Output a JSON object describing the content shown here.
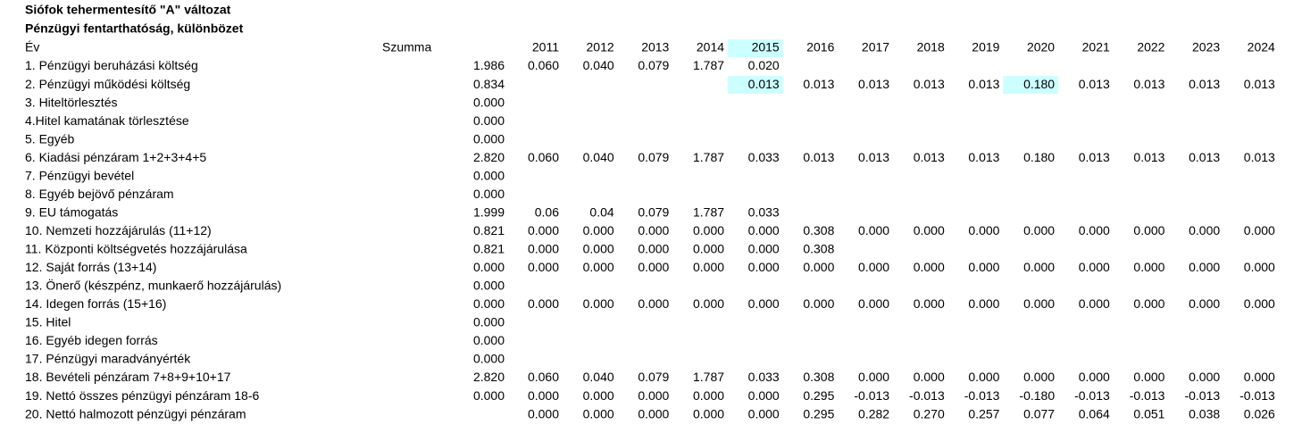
{
  "header": {
    "title": "Siófok tehermentesítő \"A\" változat",
    "subtitle": "Pénzügyi fentarthatóság, különbözet"
  },
  "table": {
    "columns": {
      "label": "Év",
      "summa": "Szumma",
      "years": [
        "2011",
        "2012",
        "2013",
        "2014",
        "2015",
        "2016",
        "2017",
        "2018",
        "2019",
        "2020",
        "2021",
        "2022",
        "2023",
        "2024"
      ]
    },
    "rows": [
      {
        "label": "1. Pénzügyi beruházási költség",
        "summa": "1.986",
        "cells": [
          "0.060",
          "0.040",
          "0.079",
          "1.787",
          "0.020",
          null,
          null,
          null,
          null,
          null,
          null,
          null,
          null,
          null
        ]
      },
      {
        "label": "2. Pénzügyi működési költség",
        "summa": "0.834",
        "cells": [
          null,
          null,
          null,
          null,
          "0.013",
          "0.013",
          "0.013",
          "0.013",
          "0.013",
          "0.180",
          "0.013",
          "0.013",
          "0.013",
          "0.013"
        ]
      },
      {
        "label": "3. Hiteltörlesztés",
        "summa": "0.000",
        "cells": [
          null,
          null,
          null,
          null,
          null,
          null,
          null,
          null,
          null,
          null,
          null,
          null,
          null,
          null
        ]
      },
      {
        "label": "4.Hitel kamatának törlesztése",
        "summa": "0.000",
        "cells": [
          null,
          null,
          null,
          null,
          null,
          null,
          null,
          null,
          null,
          null,
          null,
          null,
          null,
          null
        ]
      },
      {
        "label": "5. Egyéb",
        "summa": "0.000",
        "cells": [
          null,
          null,
          null,
          null,
          null,
          null,
          null,
          null,
          null,
          null,
          null,
          null,
          null,
          null
        ]
      },
      {
        "label": "6. Kiadási pénzáram 1+2+3+4+5",
        "summa": "2.820",
        "cells": [
          "0.060",
          "0.040",
          "0.079",
          "1.787",
          "0.033",
          "0.013",
          "0.013",
          "0.013",
          "0.013",
          "0.180",
          "0.013",
          "0.013",
          "0.013",
          "0.013"
        ]
      },
      {
        "label": "7. Pénzügyi bevétel",
        "summa": "0.000",
        "cells": [
          null,
          null,
          null,
          null,
          null,
          null,
          null,
          null,
          null,
          null,
          null,
          null,
          null,
          null
        ]
      },
      {
        "label": "8. Egyéb bejövő pénzáram",
        "summa": "0.000",
        "cells": [
          null,
          null,
          null,
          null,
          null,
          null,
          null,
          null,
          null,
          null,
          null,
          null,
          null,
          null
        ]
      },
      {
        "label": "9. EU támogatás",
        "summa": "1.999",
        "cells": [
          "0.06",
          "0.04",
          "0.079",
          "1.787",
          "0.033",
          null,
          null,
          null,
          null,
          null,
          null,
          null,
          null,
          null
        ]
      },
      {
        "label": "10. Nemzeti hozzájárulás (11+12)",
        "summa": "0.821",
        "cells": [
          "0.000",
          "0.000",
          "0.000",
          "0.000",
          "0.000",
          "0.308",
          "0.000",
          "0.000",
          "0.000",
          "0.000",
          "0.000",
          "0.000",
          "0.000",
          "0.000"
        ]
      },
      {
        "label": "11. Központi költségvetés hozzájárulása",
        "summa": "0.821",
        "cells": [
          "0.000",
          "0.000",
          "0.000",
          "0.000",
          "0.000",
          "0.308",
          null,
          null,
          null,
          null,
          null,
          null,
          null,
          null
        ]
      },
      {
        "label": "12. Saját forrás (13+14)",
        "summa": "0.000",
        "cells": [
          "0.000",
          "0.000",
          "0.000",
          "0.000",
          "0.000",
          "0.000",
          "0.000",
          "0.000",
          "0.000",
          "0.000",
          "0.000",
          "0.000",
          "0.000",
          "0.000"
        ]
      },
      {
        "label": "13. Önerő (készpénz, munkaerő hozzájárulás)",
        "summa": "0.000",
        "cells": [
          null,
          null,
          null,
          null,
          null,
          null,
          null,
          null,
          null,
          null,
          null,
          null,
          null,
          null
        ]
      },
      {
        "label": "14. Idegen forrás (15+16)",
        "summa": "0.000",
        "cells": [
          "0.000",
          "0.000",
          "0.000",
          "0.000",
          "0.000",
          "0.000",
          "0.000",
          "0.000",
          "0.000",
          "0.000",
          "0.000",
          "0.000",
          "0.000",
          "0.000"
        ]
      },
      {
        "label": "15. Hitel",
        "summa": "0.000",
        "cells": [
          null,
          null,
          null,
          null,
          null,
          null,
          null,
          null,
          null,
          null,
          null,
          null,
          null,
          null
        ]
      },
      {
        "label": "16. Egyéb idegen forrás",
        "summa": "0.000",
        "cells": [
          null,
          null,
          null,
          null,
          null,
          null,
          null,
          null,
          null,
          null,
          null,
          null,
          null,
          null
        ]
      },
      {
        "label": "17. Pénzügyi maradványérték",
        "summa": "0.000",
        "cells": [
          null,
          null,
          null,
          null,
          null,
          null,
          null,
          null,
          null,
          null,
          null,
          null,
          null,
          null
        ]
      },
      {
        "label": "18. Bevételi pénzáram 7+8+9+10+17",
        "summa": "2.820",
        "cells": [
          "0.060",
          "0.040",
          "0.079",
          "1.787",
          "0.033",
          "0.308",
          "0.000",
          "0.000",
          "0.000",
          "0.000",
          "0.000",
          "0.000",
          "0.000",
          "0.000"
        ]
      },
      {
        "label": "19. Nettó összes pénzügyi pénzáram 18-6",
        "summa": "0.000",
        "cells": [
          "0.000",
          "0.000",
          "0.000",
          "0.000",
          "0.000",
          "0.295",
          "-0.013",
          "-0.013",
          "-0.013",
          "-0.180",
          "-0.013",
          "-0.013",
          "-0.013",
          "-0.013"
        ]
      },
      {
        "label": "20. Nettó halmozott pénzügyi pénzáram",
        "summa": null,
        "cells": [
          "0.000",
          "0.000",
          "0.000",
          "0.000",
          "0.000",
          "0.295",
          "0.282",
          "0.270",
          "0.257",
          "0.077",
          "0.064",
          "0.051",
          "0.038",
          "0.026"
        ]
      }
    ]
  }
}
